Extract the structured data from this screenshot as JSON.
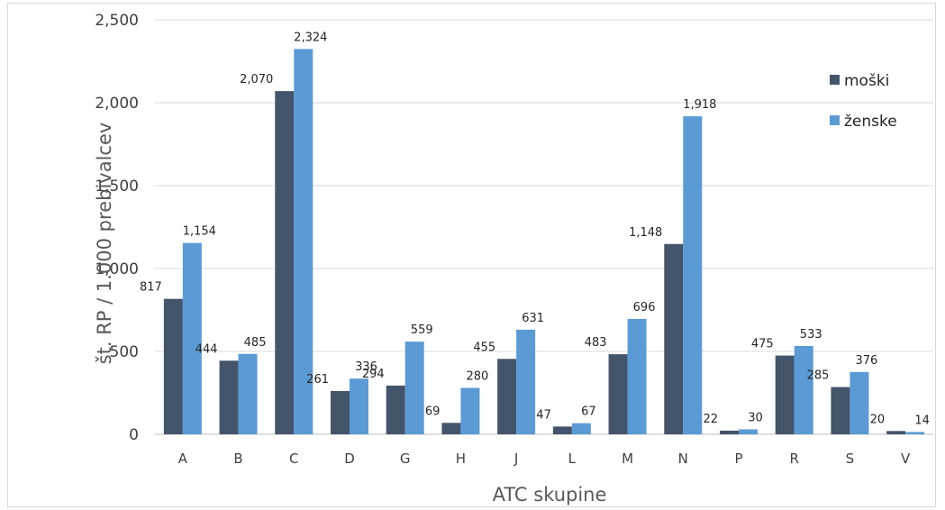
{
  "chart_data": {
    "type": "bar",
    "xlabel": "ATC skupine",
    "ylabel": "št. RP / 1.000 prebivalcev",
    "ylim": [
      0,
      2500
    ],
    "yticks": [
      0,
      500,
      1000,
      1500,
      2000,
      2500
    ],
    "ytick_labels": [
      "0",
      "500",
      "1,000",
      "1,500",
      "2,000",
      "2,500"
    ],
    "grid": "horizontal",
    "legend_position": "top-right",
    "categories": [
      "A",
      "B",
      "C",
      "D",
      "G",
      "H",
      "J",
      "L",
      "M",
      "N",
      "P",
      "R",
      "S",
      "V"
    ],
    "series": [
      {
        "name": "moški",
        "color": "#44546a",
        "values": [
          817,
          444,
          2070,
          261,
          294,
          69,
          455,
          47,
          483,
          1148,
          22,
          475,
          285,
          20
        ],
        "labels": [
          "817",
          "444",
          "2,070",
          "261",
          "294",
          "69",
          "455",
          "47",
          "483",
          "1,148",
          "22",
          "475",
          "285",
          "20"
        ]
      },
      {
        "name": "ženske",
        "color": "#5b9bd5",
        "values": [
          1154,
          485,
          2324,
          336,
          559,
          280,
          631,
          67,
          696,
          1918,
          30,
          533,
          376,
          14
        ],
        "labels": [
          "1,154",
          "485",
          "2,324",
          "336",
          "559",
          "280",
          "631",
          "67",
          "696",
          "1,918",
          "30",
          "533",
          "376",
          "14"
        ]
      }
    ]
  }
}
